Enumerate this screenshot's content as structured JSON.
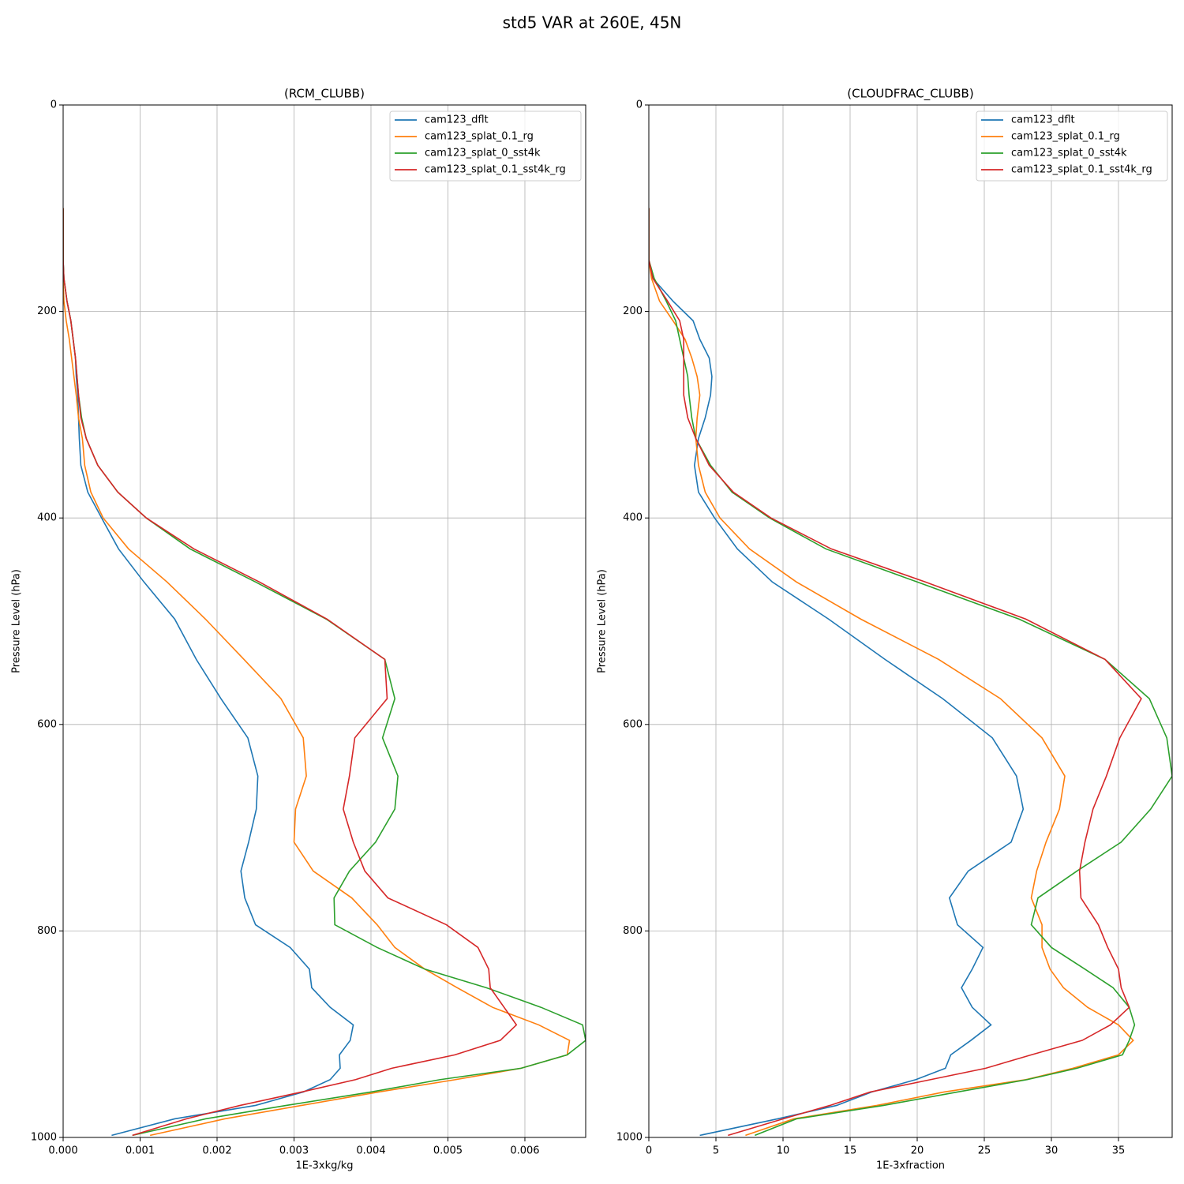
{
  "title": "std5 VAR at 260E, 45N",
  "chart_data": [
    {
      "type": "line",
      "title": "(RCM_CLUBB)",
      "xlabel": "1E-3xkg/kg",
      "ylabel": "Pressure Level (hPa)",
      "xlim": [
        0,
        0.00679
      ],
      "ylim": [
        1000,
        0
      ],
      "xticks": [
        {
          "value": 0,
          "label": "0.000"
        },
        {
          "value": 0.001,
          "label": "0.001"
        },
        {
          "value": 0.002,
          "label": "0.002"
        },
        {
          "value": 0.003,
          "label": "0.003"
        },
        {
          "value": 0.004,
          "label": "0.004"
        },
        {
          "value": 0.005,
          "label": "0.005"
        },
        {
          "value": 0.006,
          "label": "0.006"
        }
      ],
      "yticks": [
        0,
        200,
        400,
        600,
        800,
        1000
      ],
      "grid": true,
      "legend": "upper right",
      "y": [
        100,
        150,
        168,
        190,
        209,
        227,
        245,
        263,
        281,
        303,
        323,
        349,
        375,
        400,
        430,
        462,
        498,
        537,
        575,
        613,
        650,
        682,
        714,
        742,
        768,
        794,
        816,
        837,
        855,
        874,
        891,
        906,
        920,
        933,
        944,
        956,
        969,
        982,
        998
      ],
      "series": [
        {
          "name": "cam123_dflt",
          "color": "#1f77b4",
          "values": [
            0,
            0,
            1e-05,
            5e-05,
            0.0001,
            0.00013,
            0.00016,
            0.00017,
            0.00019,
            0.0002,
            0.00021,
            0.00023,
            0.00032,
            0.0005,
            0.00072,
            0.00105,
            0.00145,
            0.00173,
            0.00205,
            0.0024,
            0.00253,
            0.00251,
            0.00241,
            0.00231,
            0.00236,
            0.0025,
            0.00295,
            0.0032,
            0.00323,
            0.00347,
            0.00377,
            0.00373,
            0.00359,
            0.0036,
            0.00347,
            0.00312,
            0.0025,
            0.00145,
            0.00063
          ]
        },
        {
          "name": "cam123_splat_0.1_rg",
          "color": "#ff7f0e",
          "values": [
            0,
            0,
            0,
            1e-05,
            4e-05,
            8e-05,
            0.00011,
            0.00014,
            0.00017,
            0.0002,
            0.00025,
            0.00028,
            0.00036,
            0.00052,
            0.00085,
            0.00135,
            0.00185,
            0.00235,
            0.00283,
            0.00312,
            0.00316,
            0.00302,
            0.003,
            0.00325,
            0.00375,
            0.00408,
            0.00431,
            0.0047,
            0.00512,
            0.00558,
            0.00618,
            0.00658,
            0.00655,
            0.00595,
            0.0051,
            0.0041,
            0.0031,
            0.0021,
            0.00113
          ]
        },
        {
          "name": "cam123_splat_0_sst4k",
          "color": "#2ca02c",
          "values": [
            0,
            0,
            1e-05,
            5e-05,
            0.0001,
            0.00013,
            0.00016,
            0.00018,
            0.0002,
            0.00024,
            0.0003,
            0.00045,
            0.00071,
            0.00108,
            0.00165,
            0.0025,
            0.00342,
            0.00418,
            0.00431,
            0.00415,
            0.00435,
            0.00431,
            0.00406,
            0.00372,
            0.00352,
            0.00353,
            0.00408,
            0.0047,
            0.0055,
            0.00621,
            0.00675,
            0.00679,
            0.00655,
            0.00595,
            0.0049,
            0.004,
            0.0029,
            0.00185,
            0.0009
          ]
        },
        {
          "name": "cam123_splat_0.1_sst4k_rg",
          "color": "#d62728",
          "values": [
            0,
            0,
            1e-05,
            5e-05,
            0.0001,
            0.00013,
            0.00016,
            0.00018,
            0.0002,
            0.00023,
            0.0003,
            0.00045,
            0.00071,
            0.00108,
            0.0017,
            0.00255,
            0.00343,
            0.00418,
            0.00421,
            0.00379,
            0.00372,
            0.00364,
            0.00377,
            0.00392,
            0.00422,
            0.00498,
            0.00539,
            0.00553,
            0.00555,
            0.00573,
            0.00589,
            0.00568,
            0.00509,
            0.00427,
            0.0038,
            0.0031,
            0.0023,
            0.0016,
            0.0009
          ]
        }
      ]
    },
    {
      "type": "line",
      "title": "(CLOUDFRAC_CLUBB)",
      "xlabel": "1E-3xfraction",
      "ylabel": "Pressure Level (hPa)",
      "xlim": [
        0,
        39
      ],
      "ylim": [
        1000,
        0
      ],
      "xticks": [
        0,
        5,
        10,
        15,
        20,
        25,
        30,
        35
      ],
      "yticks": [
        0,
        200,
        400,
        600,
        800,
        1000
      ],
      "grid": true,
      "legend": "upper right",
      "y": [
        100,
        150,
        168,
        190,
        209,
        227,
        245,
        263,
        281,
        303,
        323,
        349,
        375,
        400,
        430,
        462,
        498,
        537,
        575,
        613,
        650,
        682,
        714,
        742,
        768,
        794,
        816,
        837,
        855,
        874,
        891,
        906,
        920,
        933,
        944,
        956,
        969,
        982,
        998
      ],
      "series": [
        {
          "name": "cam123_dflt",
          "color": "#1f77b4",
          "values": [
            0,
            0,
            0.3,
            1.8,
            3.3,
            3.8,
            4.5,
            4.7,
            4.6,
            4.2,
            3.7,
            3.4,
            3.7,
            4.9,
            6.6,
            9.2,
            13.4,
            17.6,
            21.9,
            25.6,
            27.4,
            27.9,
            27.0,
            23.8,
            22.4,
            23.0,
            24.9,
            24.1,
            23.3,
            24.1,
            25.5,
            24.0,
            22.5,
            22.1,
            19.9,
            16.6,
            14.0,
            9.6,
            3.8
          ]
        },
        {
          "name": "cam123_splat_0.1_rg",
          "color": "#ff7f0e",
          "values": [
            0,
            0,
            0.2,
            0.8,
            1.8,
            2.7,
            3.2,
            3.6,
            3.8,
            3.6,
            3.5,
            3.7,
            4.2,
            5.3,
            7.5,
            11.0,
            15.8,
            21.6,
            26.2,
            29.3,
            31.0,
            30.6,
            29.6,
            28.9,
            28.5,
            29.3,
            29.3,
            29.9,
            30.9,
            32.7,
            35.0,
            36.1,
            35.0,
            31.6,
            28.1,
            22.0,
            17.0,
            10.8,
            7.2
          ]
        },
        {
          "name": "cam123_splat_0_sst4k",
          "color": "#2ca02c",
          "values": [
            0,
            0,
            0.4,
            1.3,
            2.0,
            2.3,
            2.6,
            2.9,
            3.0,
            3.2,
            3.5,
            4.6,
            6.2,
            9.0,
            13.2,
            20.0,
            27.6,
            34.0,
            37.3,
            38.6,
            39.0,
            37.4,
            35.2,
            31.9,
            29.0,
            28.5,
            30.0,
            32.5,
            34.6,
            35.8,
            36.2,
            35.8,
            35.3,
            31.9,
            28.2,
            23.0,
            17.5,
            11.0,
            7.9
          ]
        },
        {
          "name": "cam123_splat_0.1_sst4k_rg",
          "color": "#d62728",
          "values": [
            0,
            0,
            0.3,
            1.4,
            2.3,
            2.6,
            2.6,
            2.6,
            2.6,
            2.9,
            3.5,
            4.5,
            6.3,
            9.1,
            13.6,
            20.6,
            28.1,
            34.0,
            36.7,
            35.1,
            34.1,
            33.1,
            32.5,
            32.1,
            32.2,
            33.5,
            34.2,
            35.0,
            35.2,
            35.8,
            34.4,
            32.3,
            28.5,
            25.1,
            21.0,
            16.5,
            13.5,
            10.0,
            5.9
          ]
        }
      ]
    }
  ]
}
